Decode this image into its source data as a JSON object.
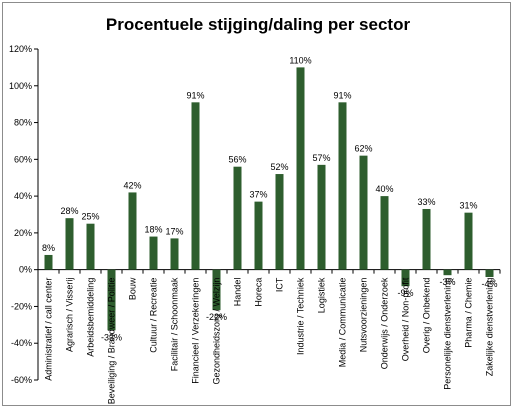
{
  "chart_data": {
    "type": "bar",
    "title": "Procentuele stijging/daling per sector",
    "categories": [
      "Administratief / call center",
      "Agrarisch / Visserij",
      "Arbeidsbemiddeling",
      "Beveiliging / Brandweer / Politie",
      "Bouw",
      "Cultuur / Recreatie",
      "Facilitair / Schoonmaak",
      "Financieel / Verzekeringen",
      "Gezondheidszorg / Welzijn",
      "Handel",
      "Horeca",
      "ICT",
      "Industrie / Techniek",
      "Logistiek",
      "Media / Communicatie",
      "Nutsvoorzieningen",
      "Onderwijs / Onderzoek",
      "Overheid / Non-profit",
      "Overig / Onbekend",
      "Personelijke dienstverlening",
      "Pharma / Chemie",
      "Zakelijke dienstverlening"
    ],
    "values": [
      8,
      28,
      25,
      -33,
      42,
      18,
      17,
      91,
      -22,
      56,
      37,
      52,
      110,
      57,
      91,
      62,
      40,
      -9,
      33,
      -3,
      31,
      -4
    ],
    "data_labels": [
      "8%",
      "28%",
      "25%",
      "-33%",
      "42%",
      "18%",
      "17%",
      "91%",
      "-22%",
      "56%",
      "37%",
      "52%",
      "110%",
      "57%",
      "91%",
      "62%",
      "40%",
      "-9%",
      "33%",
      "-3%",
      "31%",
      "-4%"
    ],
    "y_ticks": [
      "-60%",
      "-40%",
      "-20%",
      "0%",
      "20%",
      "40%",
      "60%",
      "80%",
      "100%",
      "120%"
    ],
    "ylim": [
      -60,
      120
    ],
    "grid": false,
    "legend": "none",
    "bar_color": "#2e5e2e"
  }
}
